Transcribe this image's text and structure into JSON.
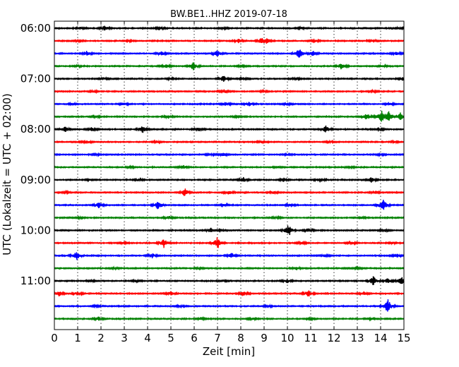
{
  "chart_data": {
    "type": "line",
    "title": "BW.BE1..HHZ 2019-07-18",
    "xlabel": "Zeit  [min]",
    "ylabel": "UTC (Lokalzeit = UTC + 02:00)",
    "xlim": [
      0,
      15
    ],
    "x_ticks": [
      "0",
      "1",
      "2",
      "3",
      "4",
      "5",
      "6",
      "7",
      "8",
      "9",
      "10",
      "11",
      "12",
      "13",
      "14",
      "15"
    ],
    "y_ticks": [
      "06:00",
      "07:00",
      "08:00",
      "09:00",
      "10:00",
      "11:00"
    ],
    "y_tick_rows": [
      0,
      4,
      8,
      12,
      16,
      20
    ],
    "grid": {
      "vertical_dotted": true,
      "each_minute": true
    },
    "colors": [
      "#000000",
      "#ff0000",
      "#0000ff",
      "#008000"
    ],
    "row_minutes": 15,
    "series": [
      {
        "start": "06:00",
        "events": [
          [
            1.1,
            0.2
          ],
          [
            2.15,
            0.35
          ],
          [
            4.5,
            0.3
          ],
          [
            7.3,
            0.2
          ],
          [
            10.6,
            0.15
          ],
          [
            14.8,
            0.15
          ]
        ]
      },
      {
        "start": "06:15",
        "events": [
          [
            1.0,
            0.15
          ],
          [
            3.2,
            0.15
          ],
          [
            7.9,
            0.35
          ],
          [
            8.9,
            0.45
          ],
          [
            9.1,
            0.35
          ],
          [
            11.2,
            0.2
          ],
          [
            13.7,
            0.2
          ]
        ]
      },
      {
        "start": "06:30",
        "events": [
          [
            1.4,
            0.4
          ],
          [
            4.6,
            0.3
          ],
          [
            7.0,
            0.5
          ],
          [
            10.5,
            0.95
          ],
          [
            11.1,
            0.4
          ],
          [
            14.7,
            0.3
          ]
        ]
      },
      {
        "start": "06:45",
        "events": [
          [
            1.0,
            0.2
          ],
          [
            4.8,
            0.3
          ],
          [
            5.95,
            0.7
          ],
          [
            8.0,
            0.2
          ],
          [
            12.3,
            0.5
          ],
          [
            14.1,
            0.2
          ]
        ]
      },
      {
        "start": "07:00",
        "events": [
          [
            2.1,
            0.2
          ],
          [
            5.0,
            0.15
          ],
          [
            7.25,
            0.5
          ],
          [
            8.1,
            0.25
          ],
          [
            10.4,
            0.2
          ],
          [
            14.95,
            0.3
          ]
        ]
      },
      {
        "start": "07:15",
        "events": [
          [
            1.7,
            0.15
          ],
          [
            7.3,
            0.3
          ],
          [
            9.0,
            0.15
          ],
          [
            13.7,
            0.15
          ]
        ]
      },
      {
        "start": "07:30",
        "events": [
          [
            0.8,
            0.2
          ],
          [
            3.0,
            0.25
          ],
          [
            7.35,
            0.35
          ],
          [
            8.35,
            0.35
          ],
          [
            10.0,
            0.2
          ],
          [
            14.4,
            0.2
          ]
        ]
      },
      {
        "start": "07:45",
        "events": [
          [
            1.8,
            0.2
          ],
          [
            4.9,
            0.25
          ],
          [
            7.9,
            0.2
          ],
          [
            13.4,
            0.55
          ],
          [
            14.05,
            0.95
          ],
          [
            14.35,
            0.8
          ],
          [
            14.85,
            0.7
          ]
        ]
      },
      {
        "start": "08:00",
        "events": [
          [
            0.45,
            0.5
          ],
          [
            1.6,
            0.3
          ],
          [
            3.8,
            0.65
          ],
          [
            6.2,
            0.3
          ],
          [
            11.65,
            0.55
          ],
          [
            13.9,
            0.3
          ]
        ]
      },
      {
        "start": "08:15",
        "events": [
          [
            1.4,
            0.25
          ],
          [
            4.4,
            0.2
          ],
          [
            8.9,
            0.2
          ],
          [
            11.8,
            0.2
          ],
          [
            14.6,
            0.15
          ]
        ]
      },
      {
        "start": "08:30",
        "events": [
          [
            1.8,
            0.15
          ],
          [
            6.7,
            0.2
          ],
          [
            7.25,
            0.3
          ],
          [
            10.0,
            0.15
          ],
          [
            14.0,
            0.15
          ]
        ]
      },
      {
        "start": "08:45",
        "events": [
          [
            3.3,
            0.15
          ],
          [
            5.55,
            0.3
          ],
          [
            9.6,
            0.15
          ],
          [
            12.7,
            0.15
          ]
        ]
      },
      {
        "start": "09:00",
        "events": [
          [
            1.5,
            0.15
          ],
          [
            3.6,
            0.2
          ],
          [
            8.1,
            0.45
          ],
          [
            9.85,
            0.3
          ],
          [
            11.4,
            0.4
          ],
          [
            13.6,
            0.45
          ]
        ]
      },
      {
        "start": "09:15",
        "events": [
          [
            0.5,
            0.15
          ],
          [
            5.6,
            0.7
          ],
          [
            7.5,
            0.4
          ],
          [
            9.4,
            0.2
          ],
          [
            13.8,
            0.25
          ]
        ]
      },
      {
        "start": "09:30",
        "events": [
          [
            1.9,
            0.5
          ],
          [
            4.45,
            0.75
          ],
          [
            7.3,
            0.2
          ],
          [
            10.1,
            0.2
          ],
          [
            14.1,
            1.0
          ]
        ]
      },
      {
        "start": "09:45",
        "events": [
          [
            1.1,
            0.15
          ],
          [
            4.9,
            0.3
          ],
          [
            9.5,
            0.2
          ],
          [
            13.2,
            0.15
          ]
        ]
      },
      {
        "start": "10:00",
        "events": [
          [
            6.7,
            0.45
          ],
          [
            7.1,
            0.3
          ],
          [
            10.05,
            1.0
          ],
          [
            10.9,
            0.3
          ],
          [
            14.2,
            0.2
          ]
        ]
      },
      {
        "start": "10:15",
        "events": [
          [
            3.0,
            0.15
          ],
          [
            4.7,
            0.8
          ],
          [
            7.0,
            1.0
          ],
          [
            10.6,
            0.25
          ],
          [
            12.8,
            0.2
          ],
          [
            14.5,
            0.2
          ]
        ]
      },
      {
        "start": "10:30",
        "events": [
          [
            0.95,
            0.75
          ],
          [
            4.2,
            0.35
          ],
          [
            7.6,
            0.4
          ],
          [
            11.6,
            0.2
          ],
          [
            14.7,
            0.3
          ]
        ]
      },
      {
        "start": "10:45",
        "events": [
          [
            2.6,
            0.15
          ],
          [
            6.2,
            0.15
          ],
          [
            10.4,
            0.3
          ],
          [
            13.0,
            0.15
          ]
        ]
      },
      {
        "start": "11:00",
        "events": [
          [
            1.6,
            0.15
          ],
          [
            3.5,
            0.2
          ],
          [
            7.2,
            0.2
          ],
          [
            10.0,
            0.3
          ],
          [
            13.7,
            0.8
          ],
          [
            14.3,
            0.45
          ],
          [
            14.9,
            0.65
          ]
        ]
      },
      {
        "start": "11:15",
        "events": [
          [
            0.2,
            0.4
          ],
          [
            1.0,
            0.35
          ],
          [
            5.0,
            0.3
          ],
          [
            8.1,
            0.4
          ],
          [
            10.9,
            0.55
          ],
          [
            13.3,
            0.3
          ]
        ]
      },
      {
        "start": "11:30",
        "events": [
          [
            1.8,
            0.15
          ],
          [
            5.4,
            0.2
          ],
          [
            9.2,
            0.15
          ],
          [
            14.3,
            1.2
          ]
        ]
      },
      {
        "start": "11:45",
        "events": [
          [
            1.9,
            0.3
          ],
          [
            6.3,
            0.25
          ],
          [
            8.5,
            0.2
          ],
          [
            11.0,
            0.15
          ],
          [
            13.6,
            0.15
          ]
        ]
      }
    ]
  }
}
